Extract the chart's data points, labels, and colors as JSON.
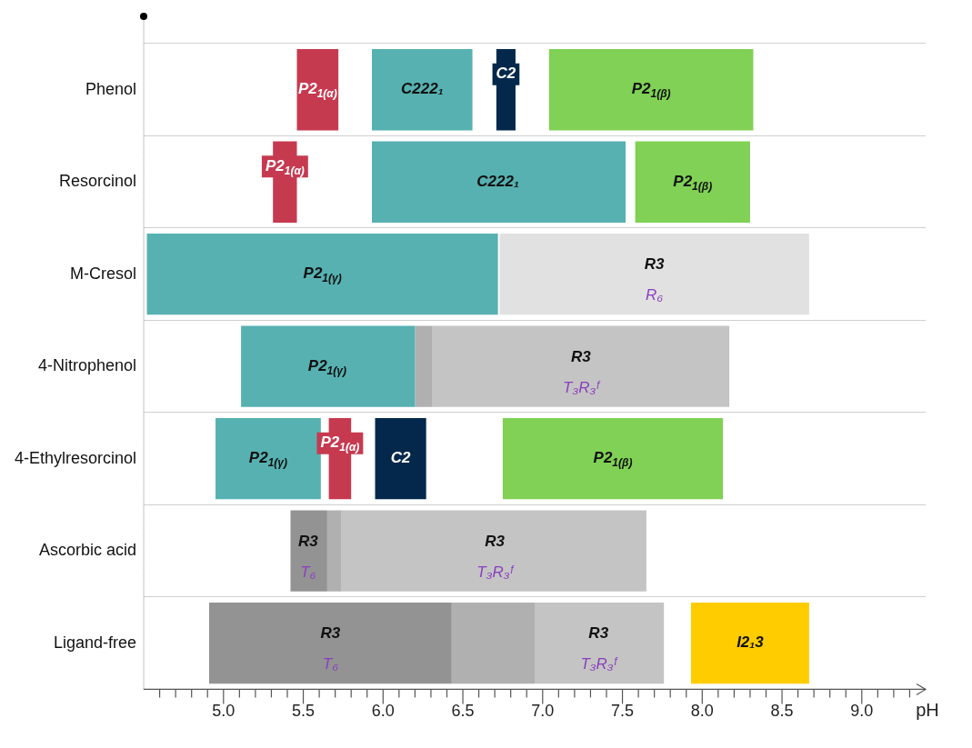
{
  "chart_data": {
    "type": "bar",
    "orientation": "horizontal",
    "xlabel": "pH",
    "categories": [
      "Phenol",
      "Resorcinol",
      "M-Cresol",
      "4-Nitrophenol",
      "4-Ethylresorcinol",
      "Ascorbic acid",
      "Ligand-free"
    ],
    "series": [
      {
        "color": "#c63a50",
        "base": [
          5.46,
          5.31,
          null,
          null,
          5.66,
          null,
          null
        ],
        "values": [
          0.26,
          0.15,
          null,
          null,
          0.14,
          null,
          null
        ]
      },
      {
        "color": "#57b1b1",
        "base": [
          5.93,
          5.93,
          4.52,
          5.11,
          4.95,
          null,
          null
        ],
        "values": [
          0.63,
          1.59,
          2.2,
          1.09,
          0.66,
          null,
          null
        ]
      },
      {
        "color": "#03284b",
        "base": [
          6.71,
          null,
          null,
          null,
          5.95,
          null,
          null
        ],
        "values": [
          0.12,
          null,
          null,
          null,
          0.32,
          null,
          null
        ]
      },
      {
        "color": "#80d155",
        "base": [
          7.04,
          7.58,
          null,
          null,
          6.75,
          null,
          null
        ],
        "values": [
          1.28,
          0.72,
          null,
          null,
          1.38,
          null,
          null
        ]
      },
      {
        "color": "#e1e1e1",
        "base": [
          null,
          null,
          6.73,
          null,
          null,
          null,
          null
        ],
        "values": [
          null,
          null,
          1.94,
          null,
          null,
          null,
          null
        ]
      },
      {
        "color": "#939393",
        "base": [
          null,
          null,
          null,
          null,
          null,
          5.42,
          4.91
        ],
        "values": [
          null,
          null,
          null,
          null,
          null,
          0.23,
          1.52
        ]
      },
      {
        "color": "#b0b0b0",
        "base": [
          null,
          null,
          null,
          6.2,
          null,
          5.65,
          6.43
        ],
        "values": [
          null,
          null,
          null,
          0.11,
          null,
          0.09,
          0.52
        ]
      },
      {
        "color": "#c4c4c4",
        "base": [
          null,
          null,
          null,
          6.31,
          null,
          5.74,
          6.95
        ],
        "values": [
          null,
          null,
          null,
          1.86,
          null,
          1.91,
          0.81
        ]
      },
      {
        "color": "#ffcc00",
        "base": [
          null,
          null,
          null,
          null,
          null,
          null,
          7.93
        ],
        "values": [
          null,
          null,
          null,
          null,
          null,
          null,
          0.74
        ]
      }
    ],
    "annotations": [
      {
        "text": "P2$_{1(α)}$",
        "x": 5.59,
        "y": "Phenol"
      },
      {
        "text": "C222₁",
        "x": 6.245,
        "y": "Phenol"
      },
      {
        "text": "C2",
        "x": 6.77,
        "y": "Phenol"
      },
      {
        "text": "P2$_{1(β)}$",
        "x": 7.68,
        "y": "Phenol"
      },
      {
        "text": "P2$_{1(α)}$",
        "x": 5.385,
        "y": "Resorcinol"
      },
      {
        "text": "C222₁",
        "x": 6.72,
        "y": "Resorcinol"
      },
      {
        "text": "P2$_{1(β)}$",
        "x": 7.94,
        "y": "Resorcinol"
      },
      {
        "text": "P2$_{1(γ)}$",
        "x": 5.62,
        "y": "M-Cresol"
      },
      {
        "text": "R3\nR₆",
        "x": 7.7,
        "y": "M-Cresol"
      },
      {
        "text": "P2$_{1(γ)}$",
        "x": 5.65,
        "y": "4-Nitrophenol"
      },
      {
        "text": "R3\nT₃R₃ᶠ",
        "x": 7.24,
        "y": "4-Nitrophenol"
      },
      {
        "text": "P2$_{1(γ)}$",
        "x": 5.28,
        "y": "4-Ethylresorcinol"
      },
      {
        "text": "P2$_{1(α)}$",
        "x": 5.73,
        "y": "4-Ethylresorcinol"
      },
      {
        "text": "C2",
        "x": 6.11,
        "y": "4-Ethylresorcinol"
      },
      {
        "text": "P2$_{1(β)}$",
        "x": 7.44,
        "y": "4-Ethylresorcinol"
      },
      {
        "text": "R3\nT₆",
        "x": 5.53,
        "y": "Ascorbic acid"
      },
      {
        "text": "R3\nT₃R₃ᶠ",
        "x": 6.7,
        "y": "Ascorbic acid"
      },
      {
        "text": "R3\nT₆",
        "x": 5.67,
        "y": "Ligand-free"
      },
      {
        "text": "R3\nT₃R₃ᶠ",
        "x": 7.35,
        "y": "Ligand-free"
      },
      {
        "text": "I2₁3",
        "x": 8.3,
        "y": "Ligand-free"
      }
    ],
    "xlim": [
      4.5,
      9.4
    ],
    "xticks": [
      {
        "value": 4.6,
        "label": null
      },
      {
        "value": 4.7,
        "label": null
      },
      {
        "value": 4.8,
        "label": null
      },
      {
        "value": 4.9,
        "label": null
      },
      {
        "value": 5,
        "label": "5.0"
      },
      {
        "value": 5.1,
        "label": null
      },
      {
        "value": 5.2,
        "label": null
      },
      {
        "value": 5.3,
        "label": null
      },
      {
        "value": 5.4,
        "label": null
      },
      5.5,
      {
        "value": 5.6,
        "label": null
      },
      {
        "value": 5.7,
        "label": null
      },
      {
        "value": 5.8,
        "label": null
      },
      {
        "value": 5.9,
        "label": null
      },
      {
        "value": 6,
        "label": "6.0"
      },
      {
        "value": 6.1,
        "label": null
      },
      {
        "value": 6.2,
        "label": null
      },
      {
        "value": 6.3,
        "label": null
      },
      {
        "value": 6.4,
        "label": null
      },
      6.5,
      {
        "value": 6.6,
        "label": null
      },
      {
        "value": 6.7,
        "label": null
      },
      {
        "value": 6.8,
        "label": null
      },
      {
        "value": 6.9,
        "label": null
      },
      {
        "value": 7,
        "label": "7.0"
      },
      {
        "value": 7.1,
        "label": null
      },
      {
        "value": 7.2,
        "label": null
      },
      {
        "value": 7.3,
        "label": null
      },
      {
        "value": 7.4,
        "label": null
      },
      7.5,
      {
        "value": 7.6,
        "label": null
      },
      {
        "value": 7.7,
        "label": null
      },
      {
        "value": 7.8,
        "label": null
      },
      {
        "value": 7.9,
        "label": null
      },
      {
        "value": 8,
        "label": "8.0"
      },
      {
        "value": 8.1,
        "label": null
      },
      {
        "value": 8.2,
        "label": null
      },
      {
        "value": 8.3,
        "label": null
      },
      {
        "value": 8.4,
        "label": null
      },
      8.5,
      {
        "value": 8.6,
        "label": null
      },
      {
        "value": 8.7,
        "label": null
      },
      {
        "value": 8.8,
        "label": null
      },
      {
        "value": 8.9,
        "label": null
      },
      {
        "value": 9,
        "label": "9.0"
      },
      {
        "value": 9.1,
        "label": null
      },
      {
        "value": 9.2,
        "label": null
      },
      {
        "value": 9.3,
        "label": null
      }
    ],
    "grid": "y",
    "legend": false
  }
}
